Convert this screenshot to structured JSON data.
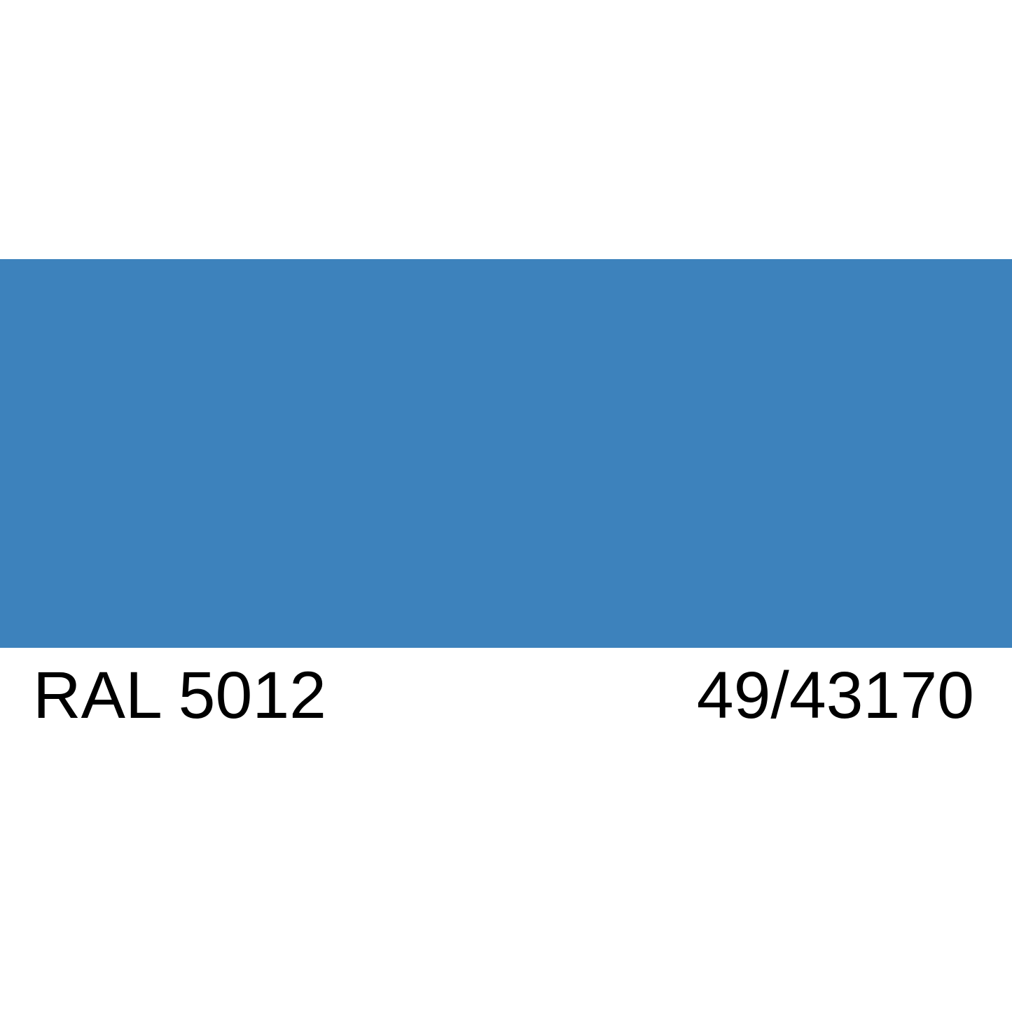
{
  "swatch": {
    "color": "#3d82bc"
  },
  "labels": {
    "ral_code": "RAL 5012",
    "product_code": "49/43170"
  }
}
